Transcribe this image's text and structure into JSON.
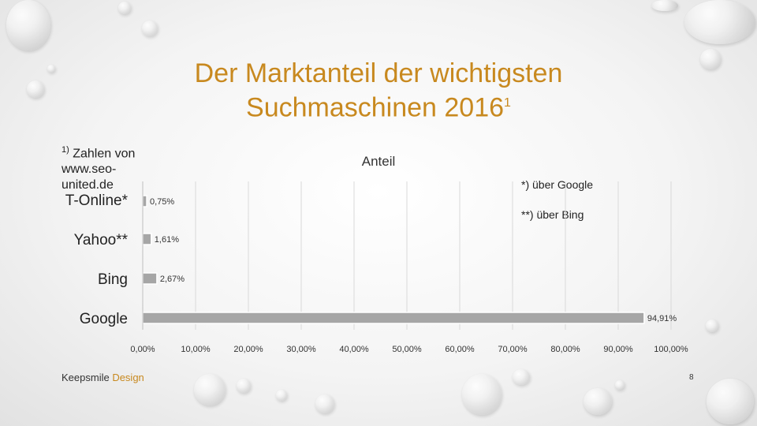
{
  "title_line1": "Der Marktanteil der wichtigsten",
  "title_line2": "Suchmaschinen 2016",
  "title_sup": "1",
  "footnote_marker": "1)",
  "footnote_line1": "Zahlen von",
  "footnote_line2": "www.seo-",
  "footnote_line3": "united.de",
  "note_google": "*) über Google",
  "note_bing": "**) über Bing",
  "brand_main": "Keepsmile ",
  "brand_accent": "Design",
  "page_number": "8",
  "chart_data": {
    "type": "bar",
    "orientation": "horizontal",
    "title": "Anteil",
    "categories": [
      "T-Online*",
      "Yahoo**",
      "Bing",
      "Google"
    ],
    "values": [
      0.75,
      1.61,
      2.67,
      94.91
    ],
    "value_labels": [
      "0,75%",
      "1,61%",
      "2,67%",
      "94,91%"
    ],
    "xlim": [
      0,
      100
    ],
    "x_ticks": [
      "0,00%",
      "10,00%",
      "20,00%",
      "30,00%",
      "40,00%",
      "50,00%",
      "60,00%",
      "70,00%",
      "80,00%",
      "90,00%",
      "100,00%"
    ],
    "grid": true,
    "bar_color": "#a6a6a6"
  }
}
